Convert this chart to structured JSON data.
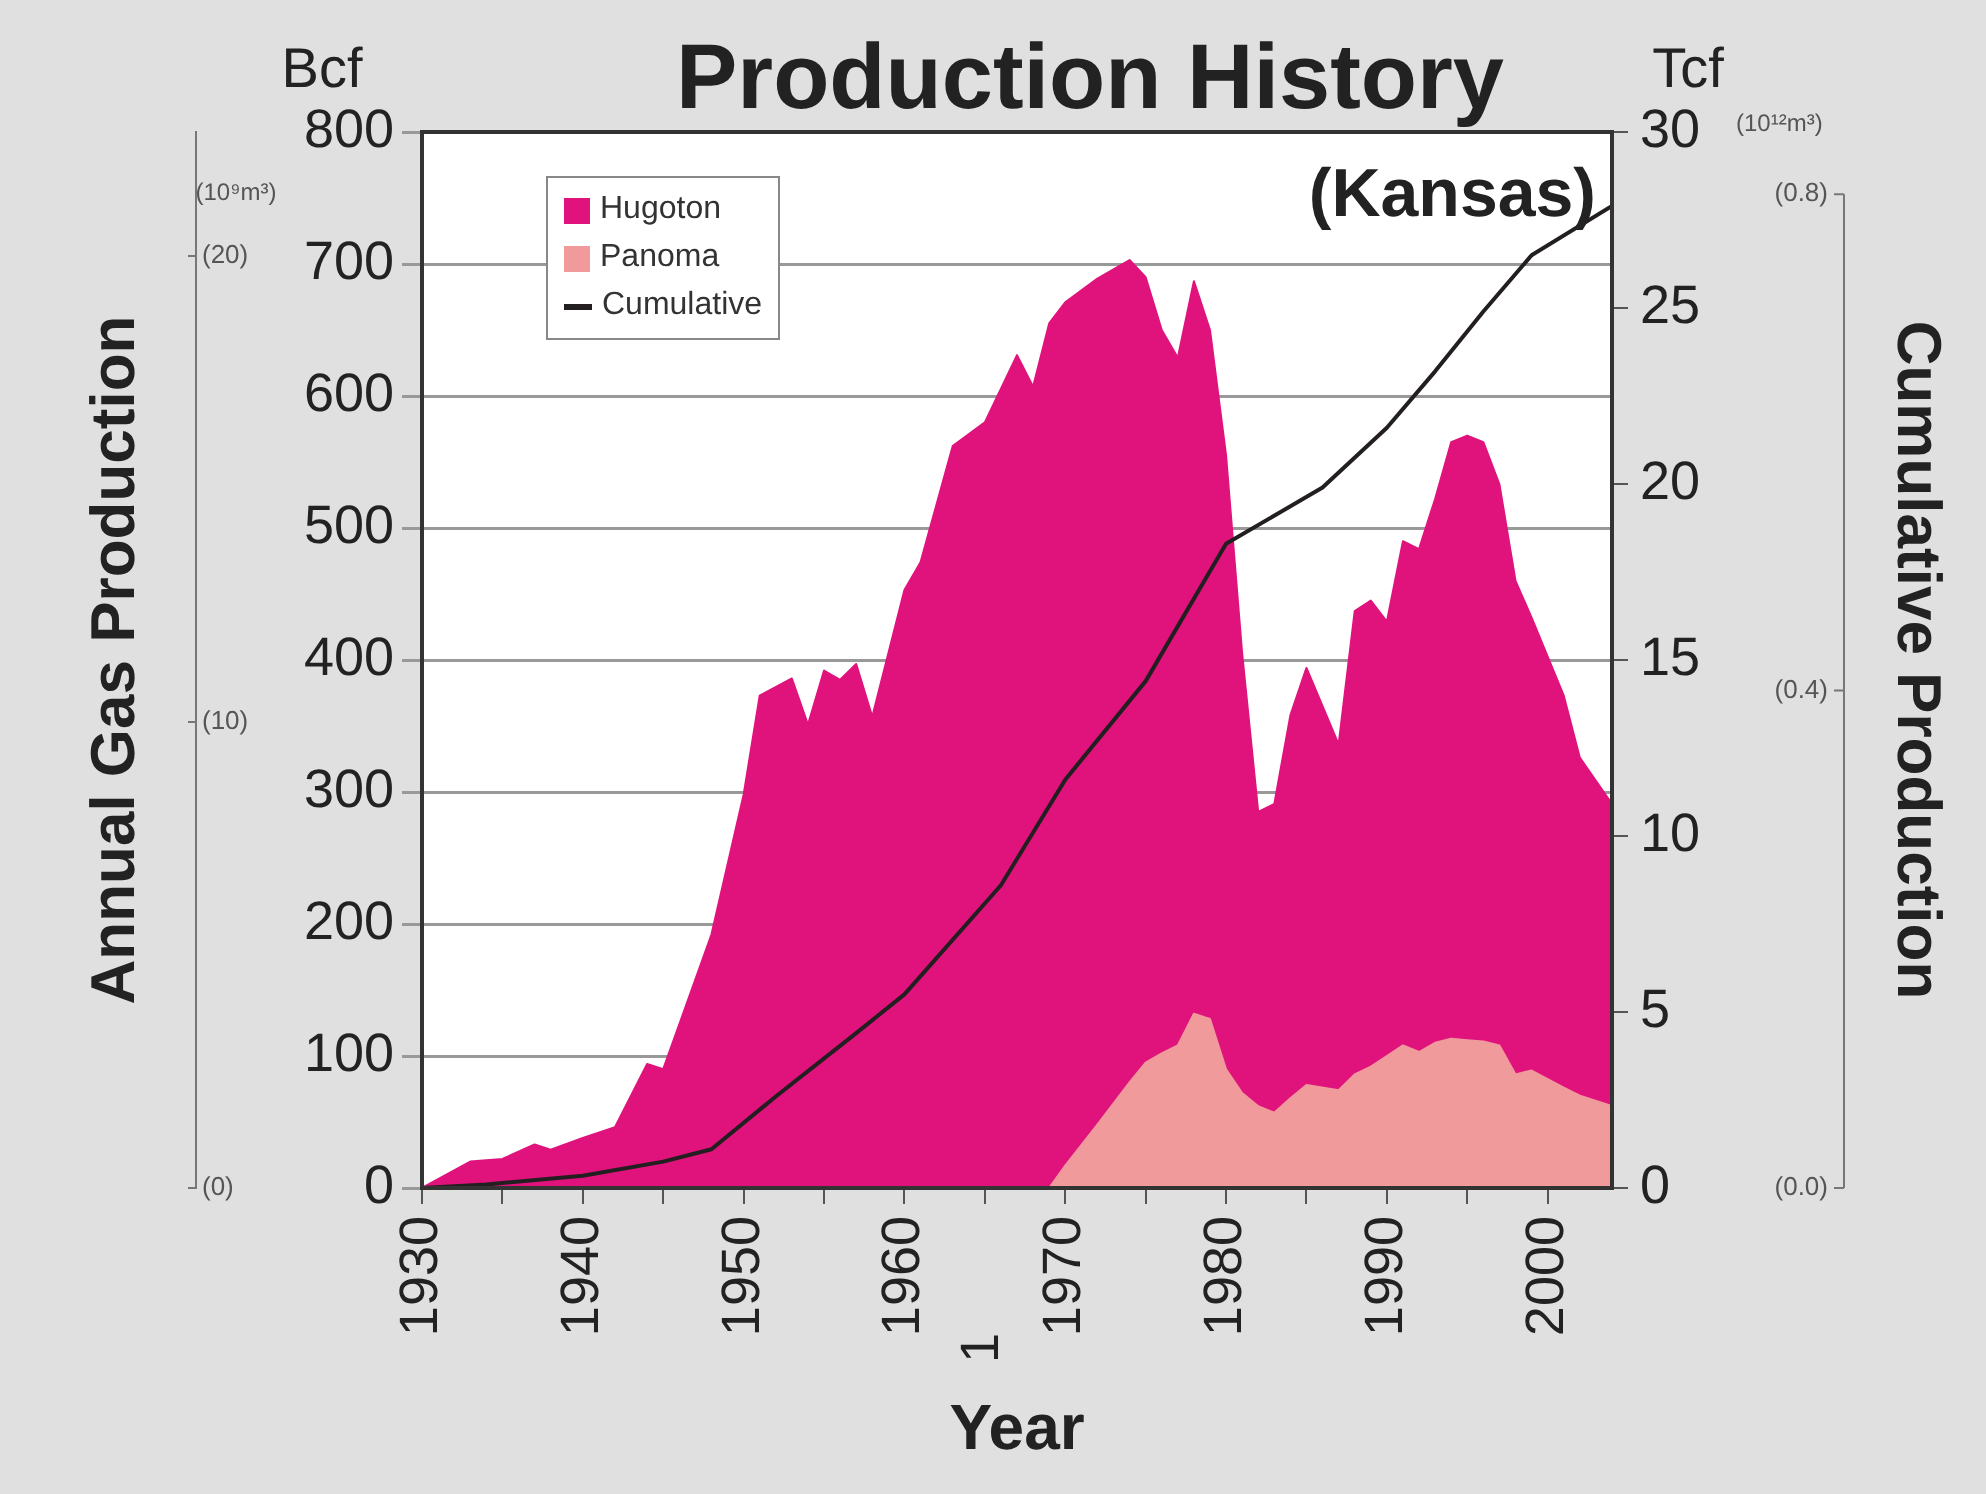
{
  "chart_data": {
    "type": "area",
    "title": "Production History",
    "subtitle": "(Kansas)",
    "xlabel": "Year",
    "ylabel": "Annual Gas Production",
    "y2label": "Cumulative Production",
    "y3label": "(10⁹m³)",
    "annotations": [
      "Bcf",
      "Tcf",
      "(10¹²m³)",
      "(0.8)",
      "(0.4)",
      "(0.0)",
      "1"
    ],
    "stacked": true,
    "grid": "y",
    "legend": "top left",
    "x": [
      1930,
      1933,
      1935,
      1937,
      1938,
      1940,
      1942,
      1944,
      1945,
      1948,
      1950,
      1951,
      1953,
      1954,
      1955,
      1956,
      1957,
      1958,
      1960,
      1961,
      1963,
      1965,
      1967,
      1968,
      1969,
      1970,
      1972,
      1974,
      1975,
      1976,
      1977,
      1978,
      1979,
      1980,
      1981,
      1982,
      1983,
      1984,
      1985,
      1987,
      1988,
      1989,
      1990,
      1991,
      1992,
      1993,
      1994,
      1995,
      1996,
      1997,
      1998,
      1999,
      2001,
      2002,
      2004
    ],
    "xlim": [
      1930,
      2004
    ],
    "xticks": [
      1930,
      {
        "value": 1935,
        "label": null
      },
      1940,
      {
        "value": 1945,
        "label": null
      },
      1950,
      {
        "value": 1955,
        "label": null
      },
      1960,
      {
        "value": 1965,
        "label": null
      },
      1970,
      {
        "value": 1975,
        "label": null
      },
      1980,
      {
        "value": 1985,
        "label": null
      },
      1990,
      {
        "value": 1995,
        "label": null
      },
      2000
    ],
    "ylim": [
      0,
      800
    ],
    "yticks": [
      0,
      100,
      200,
      300,
      400,
      500,
      600,
      700,
      800
    ],
    "y2lim": [
      0,
      30
    ],
    "y2ticks": [
      0,
      5,
      10,
      15,
      20,
      25,
      30
    ],
    "y3lim": [
      0,
      22.65
    ],
    "y3ticks": [
      {
        "value": 0,
        "label": "(0)"
      },
      {
        "value": 10,
        "label": "(10)"
      },
      {
        "value": 20,
        "label": "(20)"
      }
    ],
    "series": [
      {
        "name": "Panoma",
        "color": "#f09a9c",
        "values": [
          0,
          0,
          0,
          0,
          0,
          0,
          0,
          0,
          0,
          0,
          0,
          0,
          0,
          0,
          0,
          0,
          0,
          0,
          0,
          0,
          0,
          0,
          0,
          0,
          0,
          17,
          48,
          80,
          95,
          102,
          108,
          132,
          128,
          90,
          72,
          62,
          57,
          68,
          78,
          74,
          86,
          92,
          100,
          108,
          103,
          110,
          113,
          112,
          111,
          108,
          86,
          89,
          76,
          70,
          62
        ]
      },
      {
        "name": "Hugoton",
        "color": "#e0137c",
        "values": [
          0,
          20,
          22,
          33,
          29,
          38,
          46,
          94,
          90,
          192,
          298,
          373,
          386,
          351,
          392,
          385,
          397,
          357,
          453,
          474,
          562,
          580,
          631,
          607,
          655,
          654,
          641,
          623,
          595,
          548,
          521,
          555,
          522,
          465,
          333,
          223,
          234,
          290,
          316,
          262,
          351,
          353,
          329,
          382,
          381,
          412,
          452,
          458,
          454,
          425,
          374,
          343,
          297,
          256,
          229
        ]
      },
      {
        "name": "Cumulative",
        "type": "line",
        "axis": "y2",
        "color": "#231f20",
        "x": [
          1930,
          1934,
          1940,
          1945,
          1948,
          1952,
          1957,
          1960,
          1966,
          1970,
          1975,
          1980,
          1986,
          1990,
          1993,
          1996,
          1999,
          2004
        ],
        "values": [
          0,
          0.1,
          0.35,
          0.75,
          1.1,
          2.6,
          4.4,
          5.5,
          8.6,
          11.6,
          14.4,
          18.3,
          19.9,
          21.6,
          23.2,
          24.9,
          26.5,
          27.9
        ]
      }
    ]
  }
}
